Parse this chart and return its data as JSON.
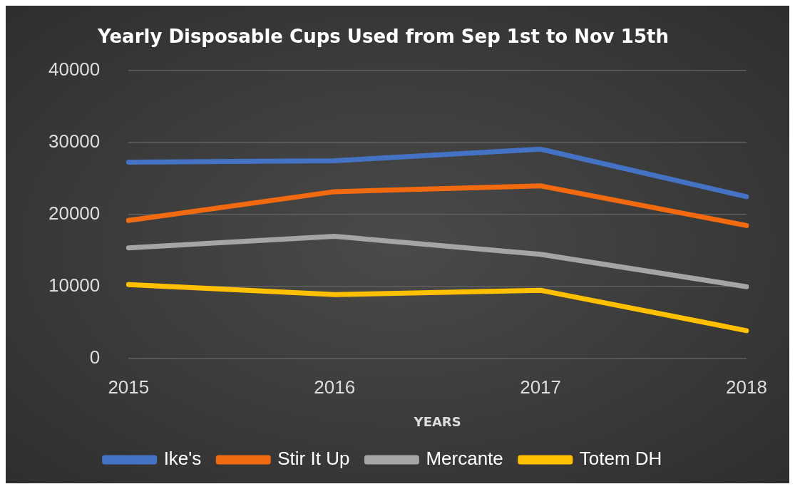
{
  "chart_data": {
    "type": "line",
    "title": "Yearly Disposable Cups Used from Sep 1st to Nov 15th",
    "xlabel": "YEARS",
    "categories": [
      "2015",
      "2016",
      "2017",
      "2018"
    ],
    "series": [
      {
        "name": "Ike's",
        "color": "#4472c4",
        "values": [
          27300,
          27500,
          29100,
          22500
        ]
      },
      {
        "name": "Stir It Up",
        "color": "#f26a10",
        "values": [
          19200,
          23200,
          24000,
          18500
        ]
      },
      {
        "name": "Mercante",
        "color": "#a5a5a5",
        "values": [
          15400,
          17000,
          14500,
          10000
        ]
      },
      {
        "name": "Totem DH",
        "color": "#ffc000",
        "values": [
          10300,
          8900,
          9500,
          3900
        ]
      }
    ],
    "ylim": [
      0,
      40000
    ],
    "yticks": [
      0,
      10000,
      20000,
      30000,
      40000
    ],
    "grid": "y",
    "legend": "bottom",
    "marker": "none",
    "line_style": "solid"
  }
}
